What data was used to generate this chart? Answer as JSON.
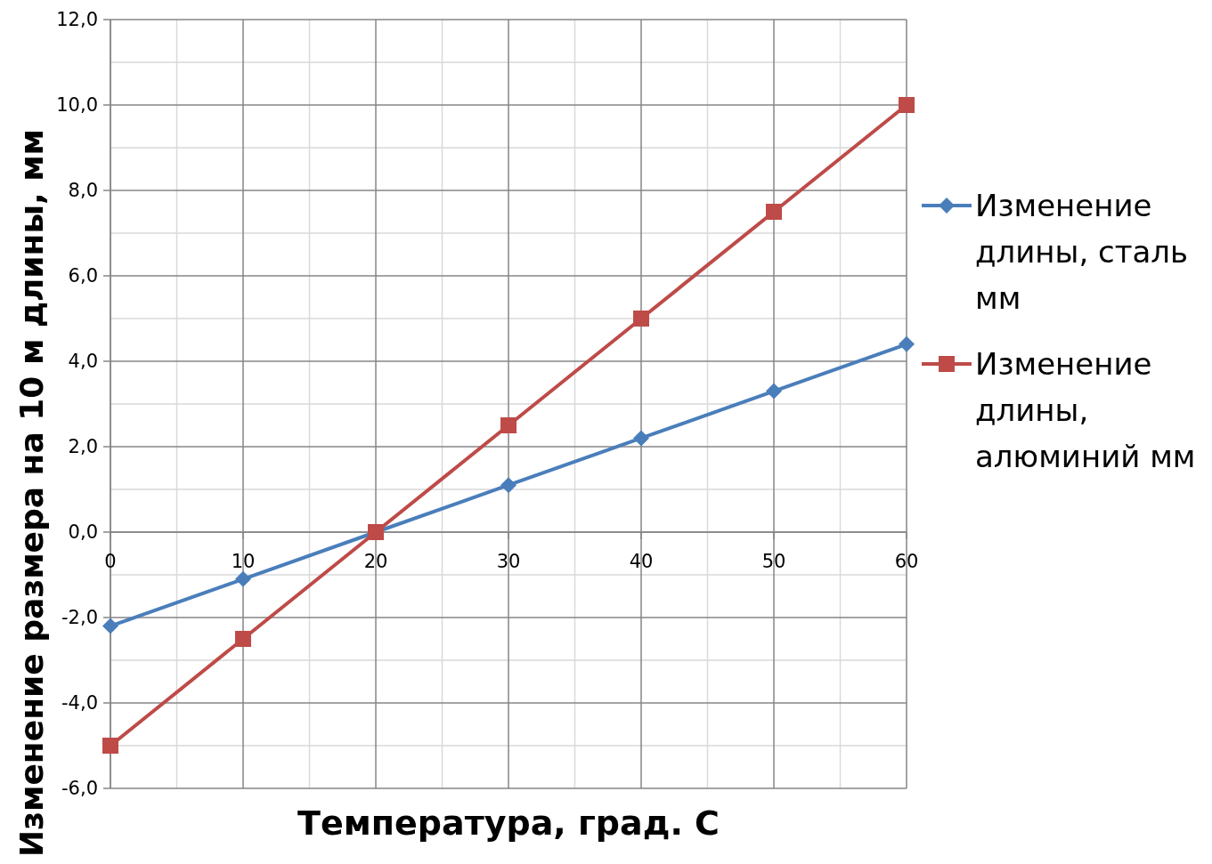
{
  "chart_data": {
    "type": "line",
    "xlabel": "Температура, град. С",
    "ylabel": "Изменение размера на 10 м длины, мм",
    "x": [
      0,
      10,
      20,
      30,
      40,
      50,
      60
    ],
    "series": [
      {
        "name": "Изменение длины, сталь мм",
        "color": "#4a7ebb",
        "marker": "diamond",
        "values": [
          -2.2,
          -1.1,
          0,
          1.1,
          2.2,
          3.3,
          4.4
        ]
      },
      {
        "name": "Изменение длины, алюминий мм",
        "color": "#be4b48",
        "marker": "square",
        "values": [
          -5,
          -2.5,
          0,
          2.5,
          5,
          7.5,
          10
        ]
      }
    ],
    "xlim": [
      0,
      60
    ],
    "xticks": [
      0,
      10,
      20,
      30,
      40,
      50,
      60
    ],
    "ylim": [
      -6,
      12
    ],
    "yticks": [
      {
        "value": -6,
        "label": "-6,0"
      },
      {
        "value": -4,
        "label": "-4,0"
      },
      {
        "value": -2,
        "label": "-2,0"
      },
      {
        "value": 0,
        "label": "0,0"
      },
      {
        "value": 2,
        "label": "2,0"
      },
      {
        "value": 4,
        "label": "4,0"
      },
      {
        "value": 6,
        "label": "6,0"
      },
      {
        "value": 8,
        "label": "8,0"
      },
      {
        "value": 10,
        "label": "10,0"
      },
      {
        "value": 12,
        "label": "12,0"
      }
    ],
    "grid": true,
    "legend": "right",
    "line_style": "solid"
  }
}
